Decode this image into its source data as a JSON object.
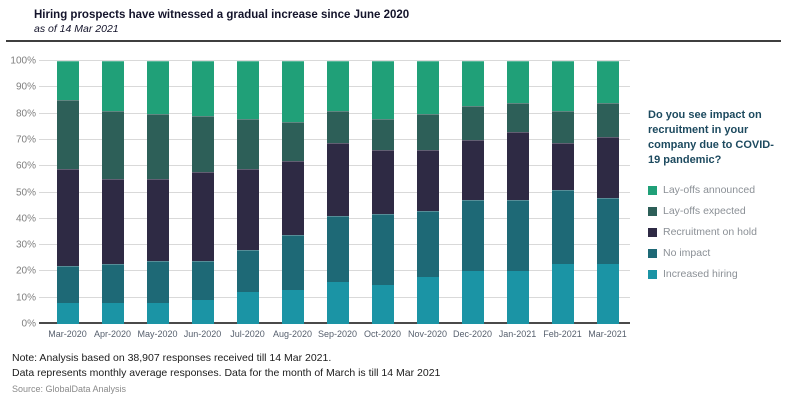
{
  "header": {
    "title": "Hiring prospects have witnessed a gradual increase since June 2020",
    "subtitle": "as of 14 Mar 2021"
  },
  "legend": {
    "question": "Do you see impact on recruitment in your company due to COVID-19 pandemic?",
    "items": [
      {
        "label": "Lay-offs announced",
        "color": "#20a078"
      },
      {
        "label": "Lay-offs expected",
        "color": "#2d5f58"
      },
      {
        "label": "Recruitment on hold",
        "color": "#2e2a44"
      },
      {
        "label": "No impact",
        "color": "#1e6976"
      },
      {
        "label": "Increased hiring",
        "color": "#1b94a5"
      }
    ]
  },
  "footer": {
    "note1": "Note: Analysis based on 38,907 responses received till 14 Mar 2021.",
    "note2": "Data represents monthly average responses. Data for the month of March is till 14 Mar 2021",
    "source": "Source: GlobalData Analysis"
  },
  "chart_data": {
    "type": "bar",
    "stacked": true,
    "unit": "percent",
    "title": "Hiring prospects have witnessed a gradual increase since June 2020",
    "xlabel": "",
    "ylabel": "",
    "ylim": [
      0,
      100
    ],
    "grid": true,
    "legend_position": "right",
    "y_ticks": [
      "0%",
      "10%",
      "20%",
      "30%",
      "40%",
      "50%",
      "60%",
      "70%",
      "80%",
      "90%",
      "100%"
    ],
    "categories": [
      "Mar-2020",
      "Apr-2020",
      "May-2020",
      "Jun-2020",
      "Jul-2020",
      "Aug-2020",
      "Sep-2020",
      "Oct-2020",
      "Nov-2020",
      "Dec-2020",
      "Jan-2021",
      "Feb-2021",
      "Mar-2021"
    ],
    "stack_order_note": "series listed bottom-to-top as stacked",
    "series": [
      {
        "name": "Increased hiring",
        "color": "#1b94a5",
        "values": [
          8,
          8,
          8,
          9,
          12,
          13,
          16,
          15,
          18,
          20,
          20,
          23,
          23
        ]
      },
      {
        "name": "No impact",
        "color": "#1e6976",
        "values": [
          14,
          15,
          16,
          15,
          16,
          21,
          25,
          27,
          25,
          27,
          27,
          28,
          25
        ]
      },
      {
        "name": "Recruitment on hold",
        "color": "#2e2a44",
        "values": [
          37,
          32,
          31,
          34,
          31,
          28,
          28,
          24,
          23,
          23,
          26,
          18,
          23
        ]
      },
      {
        "name": "Lay-offs expected",
        "color": "#2d5f58",
        "values": [
          26,
          26,
          25,
          21,
          19,
          15,
          12,
          12,
          14,
          13,
          11,
          12,
          13
        ]
      },
      {
        "name": "Lay-offs announced",
        "color": "#20a078",
        "values": [
          15,
          19,
          20,
          21,
          22,
          23,
          19,
          22,
          20,
          17,
          16,
          19,
          16
        ]
      }
    ]
  }
}
